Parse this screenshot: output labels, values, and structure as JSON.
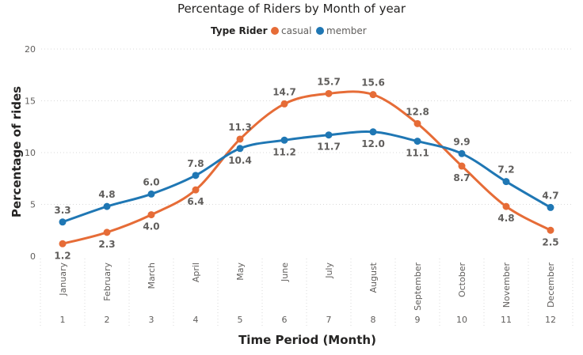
{
  "chart_data": {
    "type": "line",
    "title": "Percentage of Riders by Month of year",
    "legend_title": "Type Rider",
    "legend_placement": "top-center",
    "xlabel": "Time Period (Month)",
    "ylabel": "Percentage of rides",
    "ylim": [
      0,
      20
    ],
    "yticks": [
      0,
      5,
      10,
      15,
      20
    ],
    "grid": true,
    "months": [
      "January",
      "February",
      "March",
      "April",
      "May",
      "June",
      "July",
      "August",
      "September",
      "October",
      "November",
      "December"
    ],
    "x": [
      1,
      2,
      3,
      4,
      5,
      6,
      7,
      8,
      9,
      10,
      11,
      12
    ],
    "series": [
      {
        "name": "casual",
        "color": "#E66C37",
        "values": [
          1.2,
          2.3,
          4.0,
          6.4,
          11.3,
          14.7,
          15.7,
          15.6,
          12.8,
          8.7,
          4.8,
          2.5
        ],
        "labels": [
          "1.2",
          "2.3",
          "4.0",
          "6.4",
          "11.3",
          "14.7",
          "15.7",
          "15.6",
          "12.8",
          "8.7",
          "4.8",
          "2.5"
        ]
      },
      {
        "name": "member",
        "color": "#1F77B4",
        "values": [
          3.3,
          4.8,
          6.0,
          7.8,
          10.4,
          11.2,
          11.7,
          12.0,
          11.1,
          9.9,
          7.2,
          4.7
        ],
        "labels": [
          "3.3",
          "4.8",
          "6.0",
          "7.8",
          "10.4",
          "11.2",
          "11.7",
          "12.0",
          "11.1",
          "9.9",
          "7.2",
          "4.7"
        ]
      }
    ]
  }
}
